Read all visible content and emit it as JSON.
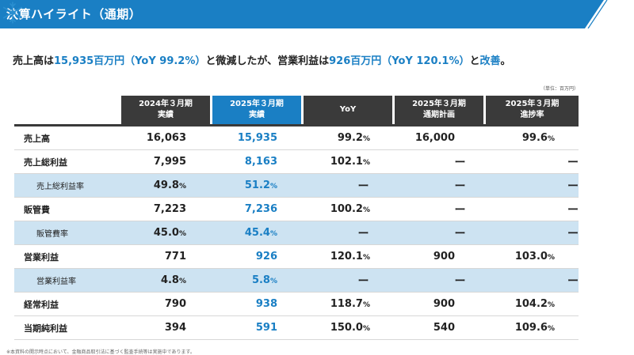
{
  "header": {
    "title": "決算ハイライト（通期）",
    "logo_icon": "snowflake-icon"
  },
  "headline": {
    "p1": "売上高は",
    "v1": "15,935百万円（YoY 99.2%）",
    "p2": "と微減したが、営業利益は",
    "v2": "926百万円（YoY 120.1%）",
    "p3": "と",
    "v3": "改善",
    "p4": "。"
  },
  "unit_note": "（単位：百万円）",
  "columns": [
    {
      "l1": "2024年３月期",
      "l2": "実績"
    },
    {
      "l1": "2025年３月期",
      "l2": "実績"
    },
    {
      "l1": "YoY",
      "l2": ""
    },
    {
      "l1": "2025年３月期",
      "l2": "通期計画"
    },
    {
      "l1": "2025年３月期",
      "l2": "進捗率"
    }
  ],
  "rows": [
    {
      "label": "売上高",
      "c1": "16,063",
      "c2": "15,935",
      "c3": "99.2",
      "c4": "16,000",
      "c5": "99.6"
    },
    {
      "label": "売上総利益",
      "c1": "7,995",
      "c2": "8,163",
      "c3": "102.1",
      "c4": "ー",
      "c5": "ー"
    },
    {
      "label": "売上総利益率",
      "c1": "49.8",
      "c2": "51.2",
      "c3": "ー",
      "c4": "ー",
      "c5": "ー"
    },
    {
      "label": "販管費",
      "c1": "7,223",
      "c2": "7,236",
      "c3": "100.2",
      "c4": "ー",
      "c5": "ー"
    },
    {
      "label": "販管費率",
      "c1": "45.0",
      "c2": "45.4",
      "c3": "ー",
      "c4": "ー",
      "c5": "ー"
    },
    {
      "label": "営業利益",
      "c1": "771",
      "c2": "926",
      "c3": "120.1",
      "c4": "900",
      "c5": "103.0"
    },
    {
      "label": "営業利益率",
      "c1": "4.8",
      "c2": "5.8",
      "c3": "ー",
      "c4": "ー",
      "c5": "ー"
    },
    {
      "label": "経常利益",
      "c1": "790",
      "c2": "938",
      "c3": "118.7",
      "c4": "900",
      "c5": "104.2"
    },
    {
      "label": "当期純利益",
      "c1": "394",
      "c2": "591",
      "c3": "150.0",
      "c4": "540",
      "c5": "109.6"
    }
  ],
  "percent_sign": "%",
  "footnote": "※本資料の開示時点において、金融商品取引法に基づく監査手続等は実施中であります。",
  "colors": {
    "accent": "#1a7fc4",
    "dark": "#3a3a3a",
    "sub_row_bg": "#cde3f2"
  }
}
